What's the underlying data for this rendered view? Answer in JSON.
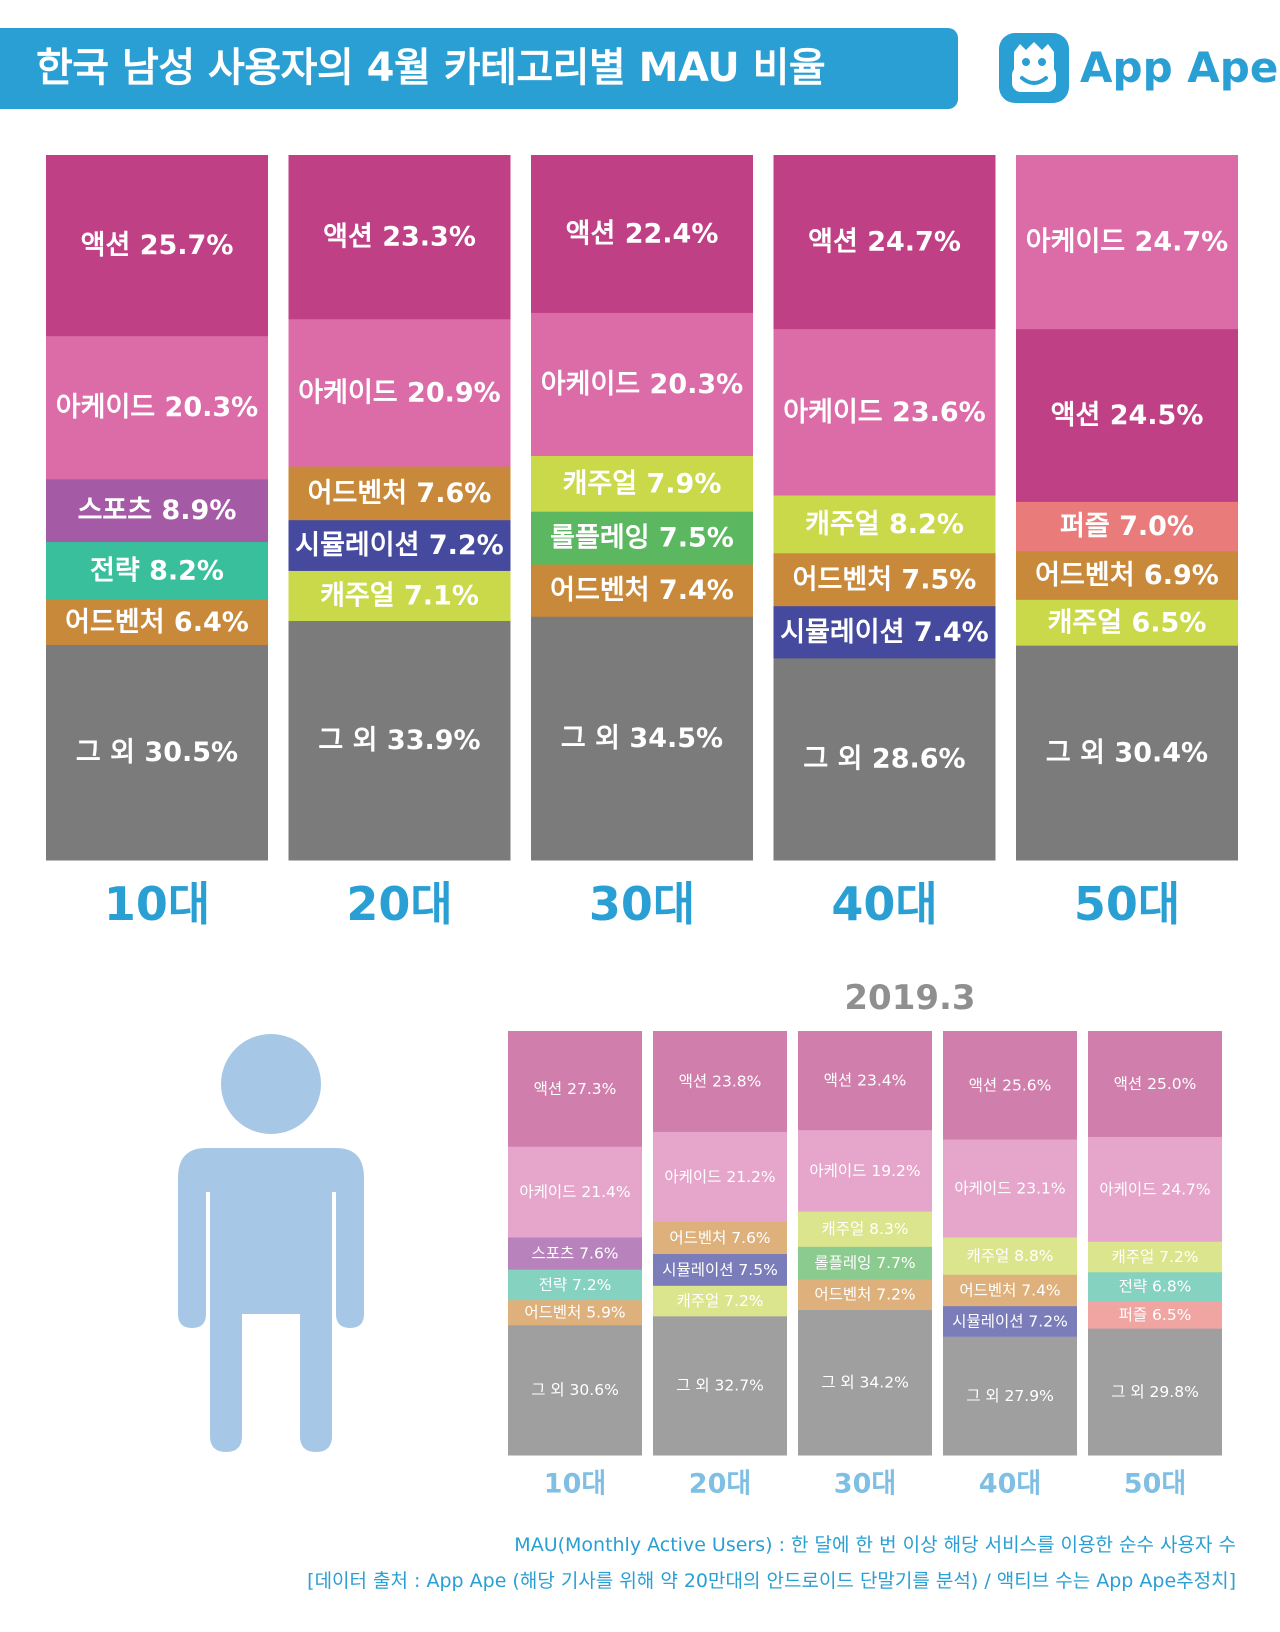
{
  "header": {
    "title": "한국 남성 사용자의 4월 카테고리별 MAU 비율",
    "logo_text": "App Ape",
    "logo_icon": "monkey-face-icon"
  },
  "colors": {
    "brand": "#2a9fd3",
    "main": {
      "액션": "#c04085",
      "아케이드": "#db6ca8",
      "스포츠": "#a55aa6",
      "전략": "#3abf9d",
      "어드벤처": "#c9893a",
      "시뮬레이션": "#464a9e",
      "캐주얼": "#c9d94a",
      "롤플레잉": "#5cb860",
      "퍼즐": "#e97b7a",
      "그 외": "#7b7b7b"
    },
    "sub": {
      "액션": "#d07fac",
      "아케이드": "#e6a6cb",
      "스포츠": "#b883bd",
      "전략": "#84d2bf",
      "어드벤처": "#ddb07c",
      "시뮬레이션": "#7b7dba",
      "캐주얼": "#dbe58d",
      "롤플레잉": "#8ccb8f",
      "퍼즐": "#f0a5a3",
      "그 외": "#a09fa0"
    }
  },
  "chart_data": [
    {
      "type": "bar",
      "stacked": true,
      "normalized": true,
      "title": "한국 남성 사용자의 4월 카테고리별 MAU 비율",
      "categories": [
        "10대",
        "20대",
        "30대",
        "40대",
        "50대"
      ],
      "stacks": [
        [
          {
            "name": "액션",
            "value": 25.7,
            "label": "액션 25.7%"
          },
          {
            "name": "아케이드",
            "value": 20.3,
            "label": "아케이드 20.3%"
          },
          {
            "name": "스포츠",
            "value": 8.9,
            "label": "스포츠 8.9%"
          },
          {
            "name": "전략",
            "value": 8.2,
            "label": "전략 8.2%"
          },
          {
            "name": "어드벤처",
            "value": 6.4,
            "label": "어드벤처 6.4%"
          },
          {
            "name": "그 외",
            "value": 30.5,
            "label": "그 외 30.5%"
          }
        ],
        [
          {
            "name": "액션",
            "value": 23.3,
            "label": "액션 23.3%"
          },
          {
            "name": "아케이드",
            "value": 20.9,
            "label": "아케이드 20.9%"
          },
          {
            "name": "어드벤처",
            "value": 7.6,
            "label": "어드벤처 7.6%"
          },
          {
            "name": "시뮬레이션",
            "value": 7.2,
            "label": "시뮬레이션 7.2%"
          },
          {
            "name": "캐주얼",
            "value": 7.1,
            "label": "캐주얼 7.1%"
          },
          {
            "name": "그 외",
            "value": 33.9,
            "label": "그 외 33.9%"
          }
        ],
        [
          {
            "name": "액션",
            "value": 22.4,
            "label": "액션 22.4%"
          },
          {
            "name": "아케이드",
            "value": 20.3,
            "label": "아케이드 20.3%"
          },
          {
            "name": "캐주얼",
            "value": 7.9,
            "label": "캐주얼 7.9%"
          },
          {
            "name": "롤플레잉",
            "value": 7.5,
            "label": "롤플레잉 7.5%"
          },
          {
            "name": "어드벤처",
            "value": 7.4,
            "label": "어드벤처 7.4%"
          },
          {
            "name": "그 외",
            "value": 34.5,
            "label": "그 외 34.5%"
          }
        ],
        [
          {
            "name": "액션",
            "value": 24.7,
            "label": "액션 24.7%"
          },
          {
            "name": "아케이드",
            "value": 23.6,
            "label": "아케이드 23.6%"
          },
          {
            "name": "캐주얼",
            "value": 8.2,
            "label": "캐주얼 8.2%"
          },
          {
            "name": "어드벤처",
            "value": 7.5,
            "label": "어드벤처 7.5%"
          },
          {
            "name": "시뮬레이션",
            "value": 7.4,
            "label": "시뮬레이션 7.4%"
          },
          {
            "name": "그 외",
            "value": 28.6,
            "label": "그 외 28.6%"
          }
        ],
        [
          {
            "name": "아케이드",
            "value": 24.7,
            "label": "아케이드 24.7%"
          },
          {
            "name": "액션",
            "value": 24.5,
            "label": "액션 24.5%"
          },
          {
            "name": "퍼즐",
            "value": 7.0,
            "label": "퍼즐 7.0%"
          },
          {
            "name": "어드벤처",
            "value": 6.9,
            "label": "어드벤처 6.9%"
          },
          {
            "name": "캐주얼",
            "value": 6.5,
            "label": "캐주얼 6.5%"
          },
          {
            "name": "그 외",
            "value": 30.4,
            "label": "그 외 30.4%"
          }
        ]
      ]
    },
    {
      "type": "bar",
      "stacked": true,
      "normalized": true,
      "title": "2019.3",
      "categories": [
        "10대",
        "20대",
        "30대",
        "40대",
        "50대"
      ],
      "stacks": [
        [
          {
            "name": "액션",
            "value": 27.3,
            "label": "액션 27.3%"
          },
          {
            "name": "아케이드",
            "value": 21.4,
            "label": "아케이드 21.4%"
          },
          {
            "name": "스포츠",
            "value": 7.6,
            "label": "스포츠 7.6%"
          },
          {
            "name": "전략",
            "value": 7.2,
            "label": "전략 7.2%"
          },
          {
            "name": "어드벤처",
            "value": 5.9,
            "label": "어드벤처 5.9%"
          },
          {
            "name": "그 외",
            "value": 30.6,
            "label": "그 외 30.6%"
          }
        ],
        [
          {
            "name": "액션",
            "value": 23.8,
            "label": "액션 23.8%"
          },
          {
            "name": "아케이드",
            "value": 21.2,
            "label": "아케이드 21.2%"
          },
          {
            "name": "어드벤처",
            "value": 7.6,
            "label": "어드벤처 7.6%"
          },
          {
            "name": "시뮬레이션",
            "value": 7.5,
            "label": "시뮬레이션 7.5%"
          },
          {
            "name": "캐주얼",
            "value": 7.2,
            "label": "캐주얼 7.2%"
          },
          {
            "name": "그 외",
            "value": 32.7,
            "label": "그 외 32.7%"
          }
        ],
        [
          {
            "name": "액션",
            "value": 23.4,
            "label": "액션 23.4%"
          },
          {
            "name": "아케이드",
            "value": 19.2,
            "label": "아케이드 19.2%"
          },
          {
            "name": "캐주얼",
            "value": 8.3,
            "label": "캐주얼 8.3%"
          },
          {
            "name": "롤플레잉",
            "value": 7.7,
            "label": "롤플레잉 7.7%"
          },
          {
            "name": "어드벤처",
            "value": 7.2,
            "label": "어드벤처 7.2%"
          },
          {
            "name": "그 외",
            "value": 34.2,
            "label": "그 외 34.2%"
          }
        ],
        [
          {
            "name": "액션",
            "value": 25.6,
            "label": "액션 25.6%"
          },
          {
            "name": "아케이드",
            "value": 23.1,
            "label": "아케이드 23.1%"
          },
          {
            "name": "캐주얼",
            "value": 8.8,
            "label": "캐주얼 8.8%"
          },
          {
            "name": "어드벤처",
            "value": 7.4,
            "label": "어드벤처 7.4%"
          },
          {
            "name": "시뮬레이션",
            "value": 7.2,
            "label": "시뮬레이션 7.2%"
          },
          {
            "name": "그 외",
            "value": 27.9,
            "label": "그 외 27.9%"
          }
        ],
        [
          {
            "name": "액션",
            "value": 25.0,
            "label": "액션 25.0%"
          },
          {
            "name": "아케이드",
            "value": 24.7,
            "label": "아케이드 24.7%"
          },
          {
            "name": "캐주얼",
            "value": 7.2,
            "label": "캐주얼 7.2%"
          },
          {
            "name": "전략",
            "value": 6.8,
            "label": "전략 6.8%"
          },
          {
            "name": "퍼즐",
            "value": 6.5,
            "label": "퍼즐 6.5%"
          },
          {
            "name": "그 외",
            "value": 29.8,
            "label": "그 외 29.8%"
          }
        ]
      ]
    }
  ],
  "sub_chart": {
    "title": "2019.3"
  },
  "person_icon": "person-icon",
  "footer": {
    "line1": "MAU(Monthly Active Users) : 한 달에 한 번 이상 해당 서비스를 이용한 순수 사용자 수",
    "line2": "[데이터 출처 : App Ape (해당 기사를 위해 약 20만대의 안드로이드 단말기를 분석) / 액티브 수는 App Ape추정치]"
  }
}
